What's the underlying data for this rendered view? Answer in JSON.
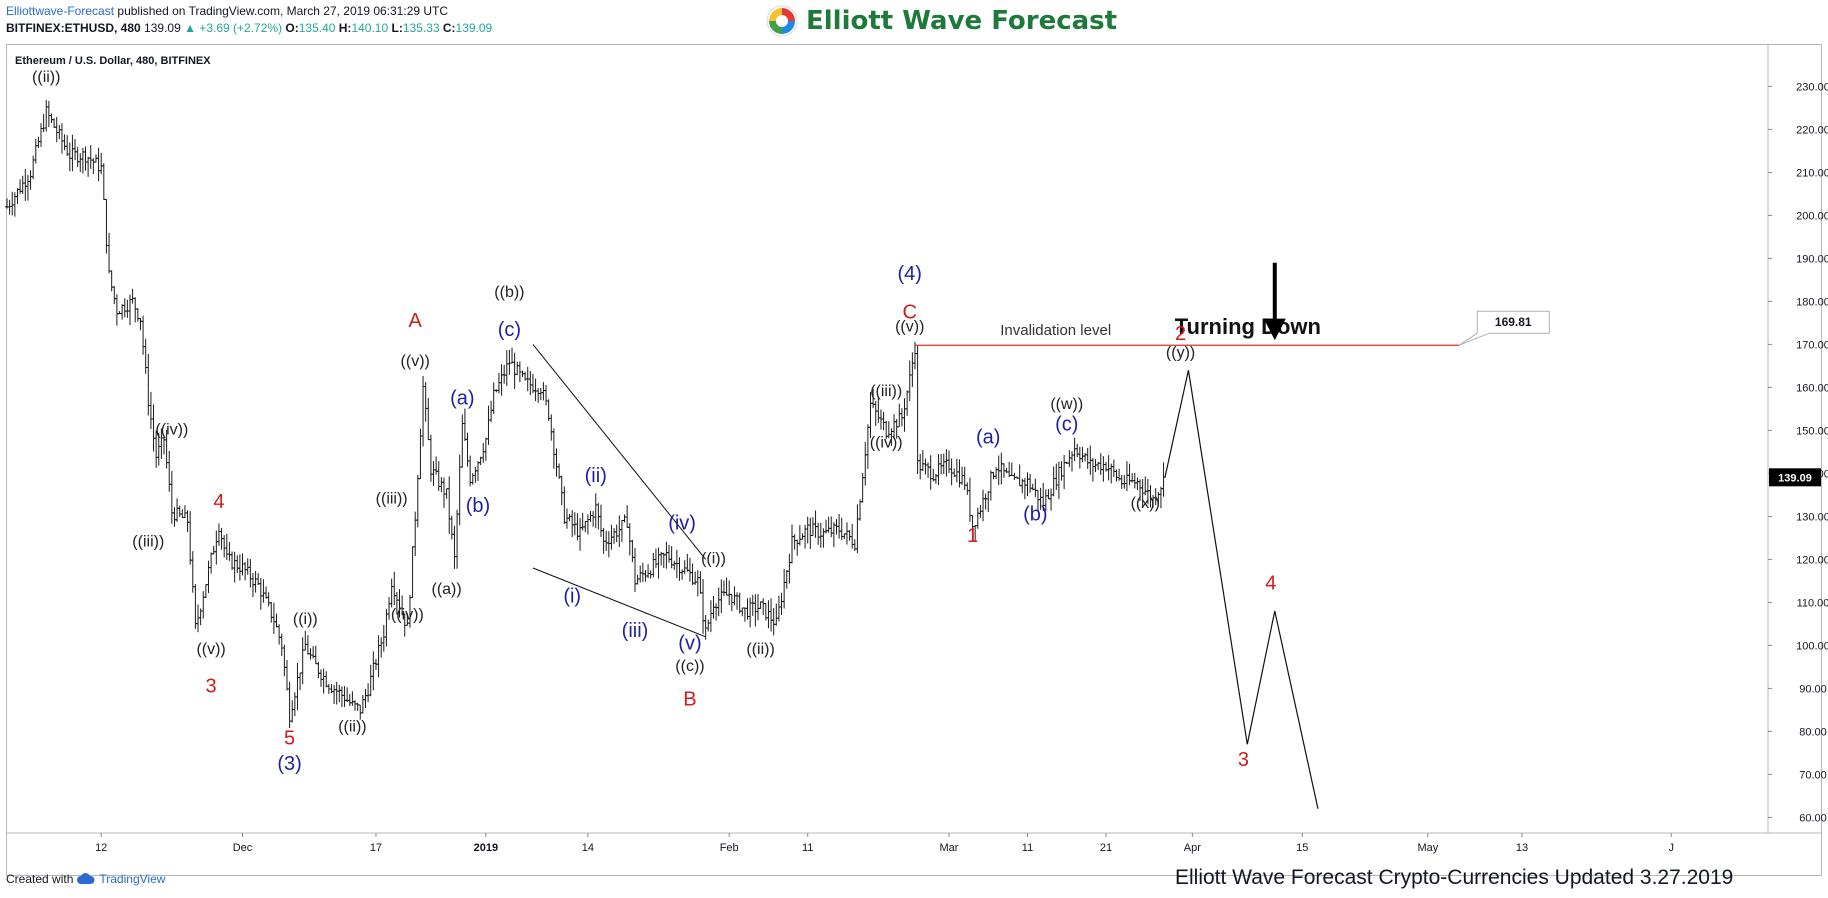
{
  "header": {
    "author": "Elliottwave-Forecast",
    "published": "published on TradingView.com, March 27, 2019 06:31:29 UTC",
    "symbol": "BITFINEX:ETHUSD, 480",
    "last": "139.09",
    "change": "▲ +3.69 (+2.72%)",
    "o_label": "O:",
    "o_value": "135.40",
    "h_label": "H:",
    "h_value": "140.10",
    "l_label": "L:",
    "l_value": "135.33",
    "c_label": "C:",
    "c_value": "139.09"
  },
  "logo": {
    "text": "Elliott Wave Forecast",
    "icon": "swirl-logo-icon"
  },
  "footer": {
    "created_with": "Created with",
    "tradingview": "TradingView",
    "updated": "Elliott Wave Forecast Crypto-Currencies Updated 3.27.2019"
  },
  "colors": {
    "blue_label": "#1f1fa0",
    "red_label": "#d01c1c",
    "black_label": "#222222",
    "invalidation_line": "#e0302a",
    "candle": "#1a1a1a"
  },
  "chart_data": {
    "type": "bar",
    "title": "Ethereum / U.S. Dollar, 480, BITFINEX",
    "ylim": [
      55,
      240
    ],
    "y_ticks": [
      "230.00",
      "220.00",
      "210.00",
      "200.00",
      "190.00",
      "180.00",
      "170.00",
      "160.00",
      "150.00",
      "140.00",
      "130.00",
      "120.00",
      "110.00",
      "100.00",
      "90.00",
      "80.00",
      "70.00",
      "60.00"
    ],
    "x_ticks": [
      {
        "label": "12",
        "day": 12
      },
      {
        "label": "Dec",
        "day": 30
      },
      {
        "label": "17",
        "day": 47
      },
      {
        "label": "2019",
        "day": 61,
        "bold": true
      },
      {
        "label": "14",
        "day": 74
      },
      {
        "label": "Feb",
        "day": 92
      },
      {
        "label": "11",
        "day": 102
      },
      {
        "label": "Mar",
        "day": 120
      },
      {
        "label": "11",
        "day": 130
      },
      {
        "label": "21",
        "day": 140
      },
      {
        "label": "Apr",
        "day": 151
      },
      {
        "label": "15",
        "day": 165
      },
      {
        "label": "May",
        "day": 181
      },
      {
        "label": "13",
        "day": 193
      },
      {
        "label": "J",
        "day": 212
      }
    ],
    "last_price": {
      "value": 139.09,
      "label": "139.09"
    },
    "invalidation": {
      "value": 169.81,
      "label": "169.81",
      "text": "Invalidation level",
      "from_day": 115.7,
      "to_day": 185
    },
    "turning_down": "Turning Down",
    "price_path": [
      [
        0,
        202
      ],
      [
        3,
        210
      ],
      [
        5,
        224
      ],
      [
        8,
        214
      ],
      [
        10,
        214
      ],
      [
        12,
        211
      ],
      [
        13,
        186
      ],
      [
        14,
        178
      ],
      [
        16,
        180
      ],
      [
        17,
        176
      ],
      [
        18,
        157
      ],
      [
        19,
        144
      ],
      [
        20,
        148
      ],
      [
        21,
        131
      ],
      [
        23,
        129
      ],
      [
        24,
        104
      ],
      [
        26,
        120
      ],
      [
        27,
        128
      ],
      [
        28,
        120
      ],
      [
        30,
        118
      ],
      [
        32,
        114
      ],
      [
        34,
        106
      ],
      [
        35,
        100
      ],
      [
        36,
        84
      ],
      [
        38,
        100
      ],
      [
        39,
        96
      ],
      [
        41,
        91
      ],
      [
        43,
        88
      ],
      [
        44,
        86
      ],
      [
        45,
        85
      ],
      [
        46,
        90
      ],
      [
        48,
        103
      ],
      [
        49,
        115
      ],
      [
        51,
        104
      ],
      [
        52,
        130
      ],
      [
        53,
        160
      ],
      [
        54,
        141
      ],
      [
        56,
        135
      ],
      [
        57,
        120
      ],
      [
        58,
        151
      ],
      [
        59,
        139
      ],
      [
        60,
        143
      ],
      [
        61,
        148
      ],
      [
        62,
        158
      ],
      [
        64,
        166
      ],
      [
        66,
        161
      ],
      [
        68,
        160
      ],
      [
        69,
        154
      ],
      [
        70,
        142
      ],
      [
        71,
        130
      ],
      [
        73,
        126
      ],
      [
        75,
        132
      ],
      [
        76,
        124
      ],
      [
        78,
        127
      ],
      [
        79,
        129
      ],
      [
        80,
        115
      ],
      [
        82,
        118
      ],
      [
        84,
        121
      ],
      [
        86,
        118
      ],
      [
        88,
        115
      ],
      [
        89,
        103
      ],
      [
        90,
        110
      ],
      [
        92,
        112
      ],
      [
        94,
        108
      ],
      [
        96,
        109
      ],
      [
        98,
        105
      ],
      [
        100,
        124
      ],
      [
        102,
        127
      ],
      [
        104,
        126
      ],
      [
        106,
        127
      ],
      [
        108,
        124
      ],
      [
        110,
        156
      ],
      [
        112,
        150
      ],
      [
        114,
        153
      ],
      [
        115,
        162
      ],
      [
        115.7,
        169.8
      ],
      [
        116,
        142
      ],
      [
        118,
        140
      ],
      [
        120,
        142
      ],
      [
        122,
        138
      ],
      [
        123,
        128
      ],
      [
        124,
        132
      ],
      [
        126,
        142
      ],
      [
        128,
        138
      ],
      [
        130,
        138
      ],
      [
        132,
        133
      ],
      [
        134,
        140
      ],
      [
        136,
        146
      ],
      [
        138,
        142
      ],
      [
        140,
        142
      ],
      [
        142,
        138
      ],
      [
        144,
        138
      ],
      [
        146,
        134
      ],
      [
        147.5,
        139
      ]
    ],
    "projection": [
      {
        "day": 147.5,
        "price": 139
      },
      {
        "day": 150.5,
        "price": 164
      },
      {
        "day": 158,
        "price": 77
      },
      {
        "day": 161.5,
        "price": 108
      },
      {
        "day": 167,
        "price": 62
      }
    ],
    "triangle_lines": [
      [
        [
          67,
          170
        ],
        [
          89,
          120
        ]
      ],
      [
        [
          67,
          118
        ],
        [
          89,
          102
        ]
      ]
    ],
    "wave_labels": [
      {
        "text": "((ii))",
        "day": 5,
        "price": 231,
        "color": "black"
      },
      {
        "text": "((iv))",
        "day": 21,
        "price": 149,
        "color": "black"
      },
      {
        "text": "((iii))",
        "day": 18,
        "price": 123,
        "color": "black"
      },
      {
        "text": "4",
        "day": 27,
        "price": 132,
        "color": "red"
      },
      {
        "text": "((v))",
        "day": 26,
        "price": 98,
        "color": "black"
      },
      {
        "text": "3",
        "day": 26,
        "price": 89,
        "color": "red"
      },
      {
        "text": "((i))",
        "day": 38,
        "price": 105,
        "color": "black"
      },
      {
        "text": "5",
        "day": 36,
        "price": 77,
        "color": "red"
      },
      {
        "text": "(3)",
        "day": 36,
        "price": 71,
        "color": "blue"
      },
      {
        "text": "((ii))",
        "day": 44,
        "price": 80,
        "color": "black"
      },
      {
        "text": "((iii))",
        "day": 49,
        "price": 133,
        "color": "black"
      },
      {
        "text": "((iv))",
        "day": 51,
        "price": 106,
        "color": "black"
      },
      {
        "text": "A",
        "day": 52,
        "price": 174,
        "color": "red"
      },
      {
        "text": "((v))",
        "day": 52,
        "price": 165,
        "color": "black"
      },
      {
        "text": "(a)",
        "day": 58,
        "price": 156,
        "color": "blue"
      },
      {
        "text": "(b)",
        "day": 60,
        "price": 131,
        "color": "blue"
      },
      {
        "text": "((a))",
        "day": 56,
        "price": 112,
        "color": "black"
      },
      {
        "text": "((b))",
        "day": 64,
        "price": 181,
        "color": "black"
      },
      {
        "text": "(c)",
        "day": 64,
        "price": 172,
        "color": "blue"
      },
      {
        "text": "(ii)",
        "day": 75,
        "price": 138,
        "color": "blue"
      },
      {
        "text": "(iv)",
        "day": 86,
        "price": 127,
        "color": "blue"
      },
      {
        "text": "((i))",
        "day": 90,
        "price": 119,
        "color": "black"
      },
      {
        "text": "(i)",
        "day": 72,
        "price": 110,
        "color": "blue"
      },
      {
        "text": "(iii)",
        "day": 80,
        "price": 102,
        "color": "blue"
      },
      {
        "text": "(v)",
        "day": 87,
        "price": 99,
        "color": "blue"
      },
      {
        "text": "((c))",
        "day": 87,
        "price": 94,
        "color": "black"
      },
      {
        "text": "B",
        "day": 87,
        "price": 86,
        "color": "red"
      },
      {
        "text": "((ii))",
        "day": 96,
        "price": 98,
        "color": "black"
      },
      {
        "text": "(4)",
        "day": 115,
        "price": 185,
        "color": "blue"
      },
      {
        "text": "C",
        "day": 115,
        "price": 176,
        "color": "red"
      },
      {
        "text": "((v))",
        "day": 115,
        "price": 173,
        "color": "black"
      },
      {
        "text": "((iii))",
        "day": 112,
        "price": 158,
        "color": "black"
      },
      {
        "text": "((iv))",
        "day": 112,
        "price": 146,
        "color": "black"
      },
      {
        "text": "(a)",
        "day": 125,
        "price": 147,
        "color": "blue"
      },
      {
        "text": "1",
        "day": 123,
        "price": 124,
        "color": "red"
      },
      {
        "text": "(b)",
        "day": 131,
        "price": 129,
        "color": "blue"
      },
      {
        "text": "((w))",
        "day": 135,
        "price": 155,
        "color": "black"
      },
      {
        "text": "(c)",
        "day": 135,
        "price": 150,
        "color": "blue"
      },
      {
        "text": "((x))",
        "day": 145,
        "price": 132,
        "color": "black"
      },
      {
        "text": "2",
        "day": 149.5,
        "price": 171,
        "color": "red"
      },
      {
        "text": "((y))",
        "day": 149.5,
        "price": 167,
        "color": "black"
      },
      {
        "text": "3",
        "day": 157.5,
        "price": 72,
        "color": "red"
      },
      {
        "text": "4",
        "day": 161,
        "price": 113,
        "color": "red"
      }
    ]
  }
}
